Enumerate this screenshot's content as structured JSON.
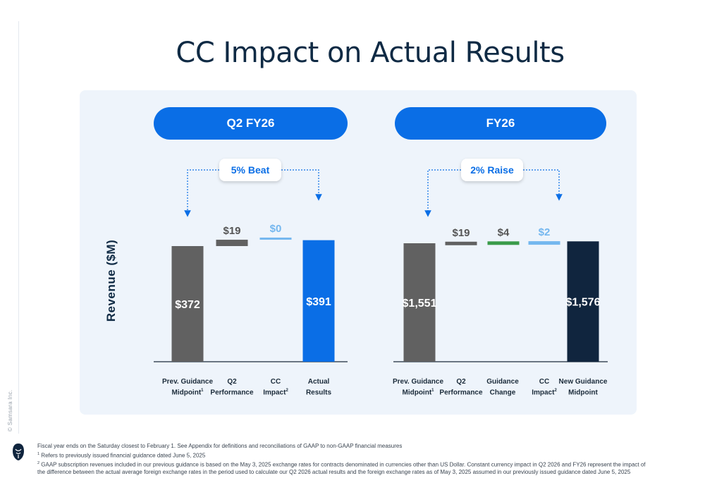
{
  "title": "CC Impact on Actual Results",
  "copyright": "© Samsara Inc.",
  "ylabel": "Revenue ($M)",
  "colors": {
    "gray": "#616161",
    "blue": "#0a6ee6",
    "light_blue": "#74b7ef",
    "green": "#3a9b4a",
    "navy": "#10253e",
    "pill": "#0a6ee6"
  },
  "panels": [
    {
      "header": "Q2 FY26",
      "callout": "5% Beat",
      "categories": [
        {
          "line1": "Prev. Guidance",
          "line2": "Midpoint",
          "sup": "1"
        },
        {
          "line1": "Q2",
          "line2": "Performance",
          "sup": ""
        },
        {
          "line1": "CC",
          "line2": "Impact",
          "sup": "2"
        },
        {
          "line1": "Actual",
          "line2": "Results",
          "sup": ""
        }
      ]
    },
    {
      "header": "FY26",
      "callout": "2% Raise",
      "categories": [
        {
          "line1": "Prev. Guidance",
          "line2": "Midpoint",
          "sup": "1"
        },
        {
          "line1": "Q2",
          "line2": "Performance",
          "sup": ""
        },
        {
          "line1": "Guidance",
          "line2": "Change",
          "sup": ""
        },
        {
          "line1": "CC",
          "line2": "Impact",
          "sup": "2"
        },
        {
          "line1": "New Guidance",
          "line2": "Midpoint",
          "sup": ""
        }
      ]
    }
  ],
  "chart_data": [
    {
      "type": "bar",
      "title": "Q2 FY26",
      "categories": [
        "Prev. Guidance Midpoint",
        "Q2 Performance",
        "CC Impact",
        "Actual Results"
      ],
      "values": [
        372,
        19,
        0,
        391
      ],
      "labels": [
        "$372",
        "$19",
        "$0",
        "$391"
      ],
      "kinds": [
        "total",
        "delta",
        "delta",
        "total"
      ],
      "bar_colors": [
        "#616161",
        "#616161",
        "#74b7ef",
        "#0a6ee6"
      ],
      "label_colors": [
        "#ffffff",
        "#555555",
        "#74b7ef",
        "#ffffff"
      ],
      "ylabel": "Revenue ($M)"
    },
    {
      "type": "bar",
      "title": "FY26",
      "categories": [
        "Prev. Guidance Midpoint",
        "Q2 Performance",
        "Guidance Change",
        "CC Impact",
        "New Guidance Midpoint"
      ],
      "values": [
        1551,
        19,
        4,
        2,
        1576
      ],
      "labels": [
        "$1,551",
        "$19",
        "$4",
        "$2",
        "$1,576"
      ],
      "kinds": [
        "total",
        "delta",
        "delta",
        "delta",
        "total"
      ],
      "bar_colors": [
        "#616161",
        "#616161",
        "#3a9b4a",
        "#74b7ef",
        "#10253e"
      ],
      "label_colors": [
        "#ffffff",
        "#555555",
        "#555555",
        "#74b7ef",
        "#ffffff"
      ],
      "ylabel": "Revenue ($M)"
    }
  ],
  "footnotes": {
    "line1": "Fiscal year ends on the Saturday closest to February 1. See Appendix for definitions and reconciliations of GAAP to non-GAAP financial measures",
    "n1_mark": "1",
    "n1": " Refers to previously issued financial guidance dated June 5, 2025",
    "n2_mark": "2",
    "n2a": " GAAP subscription revenues included in our previous guidance is based on the May 3, 2025 exchange rates for contracts denominated in currencies other than US Dollar. Constant currency impact in Q2 2026 and FY26 represent the impact of",
    "n2b": "the difference between the actual average foreign exchange rates in the period used to calculate our Q2 2026 actual results and the foreign exchange rates as of May 3, 2025 assumed in our previously issued guidance dated June 5, 2025"
  }
}
